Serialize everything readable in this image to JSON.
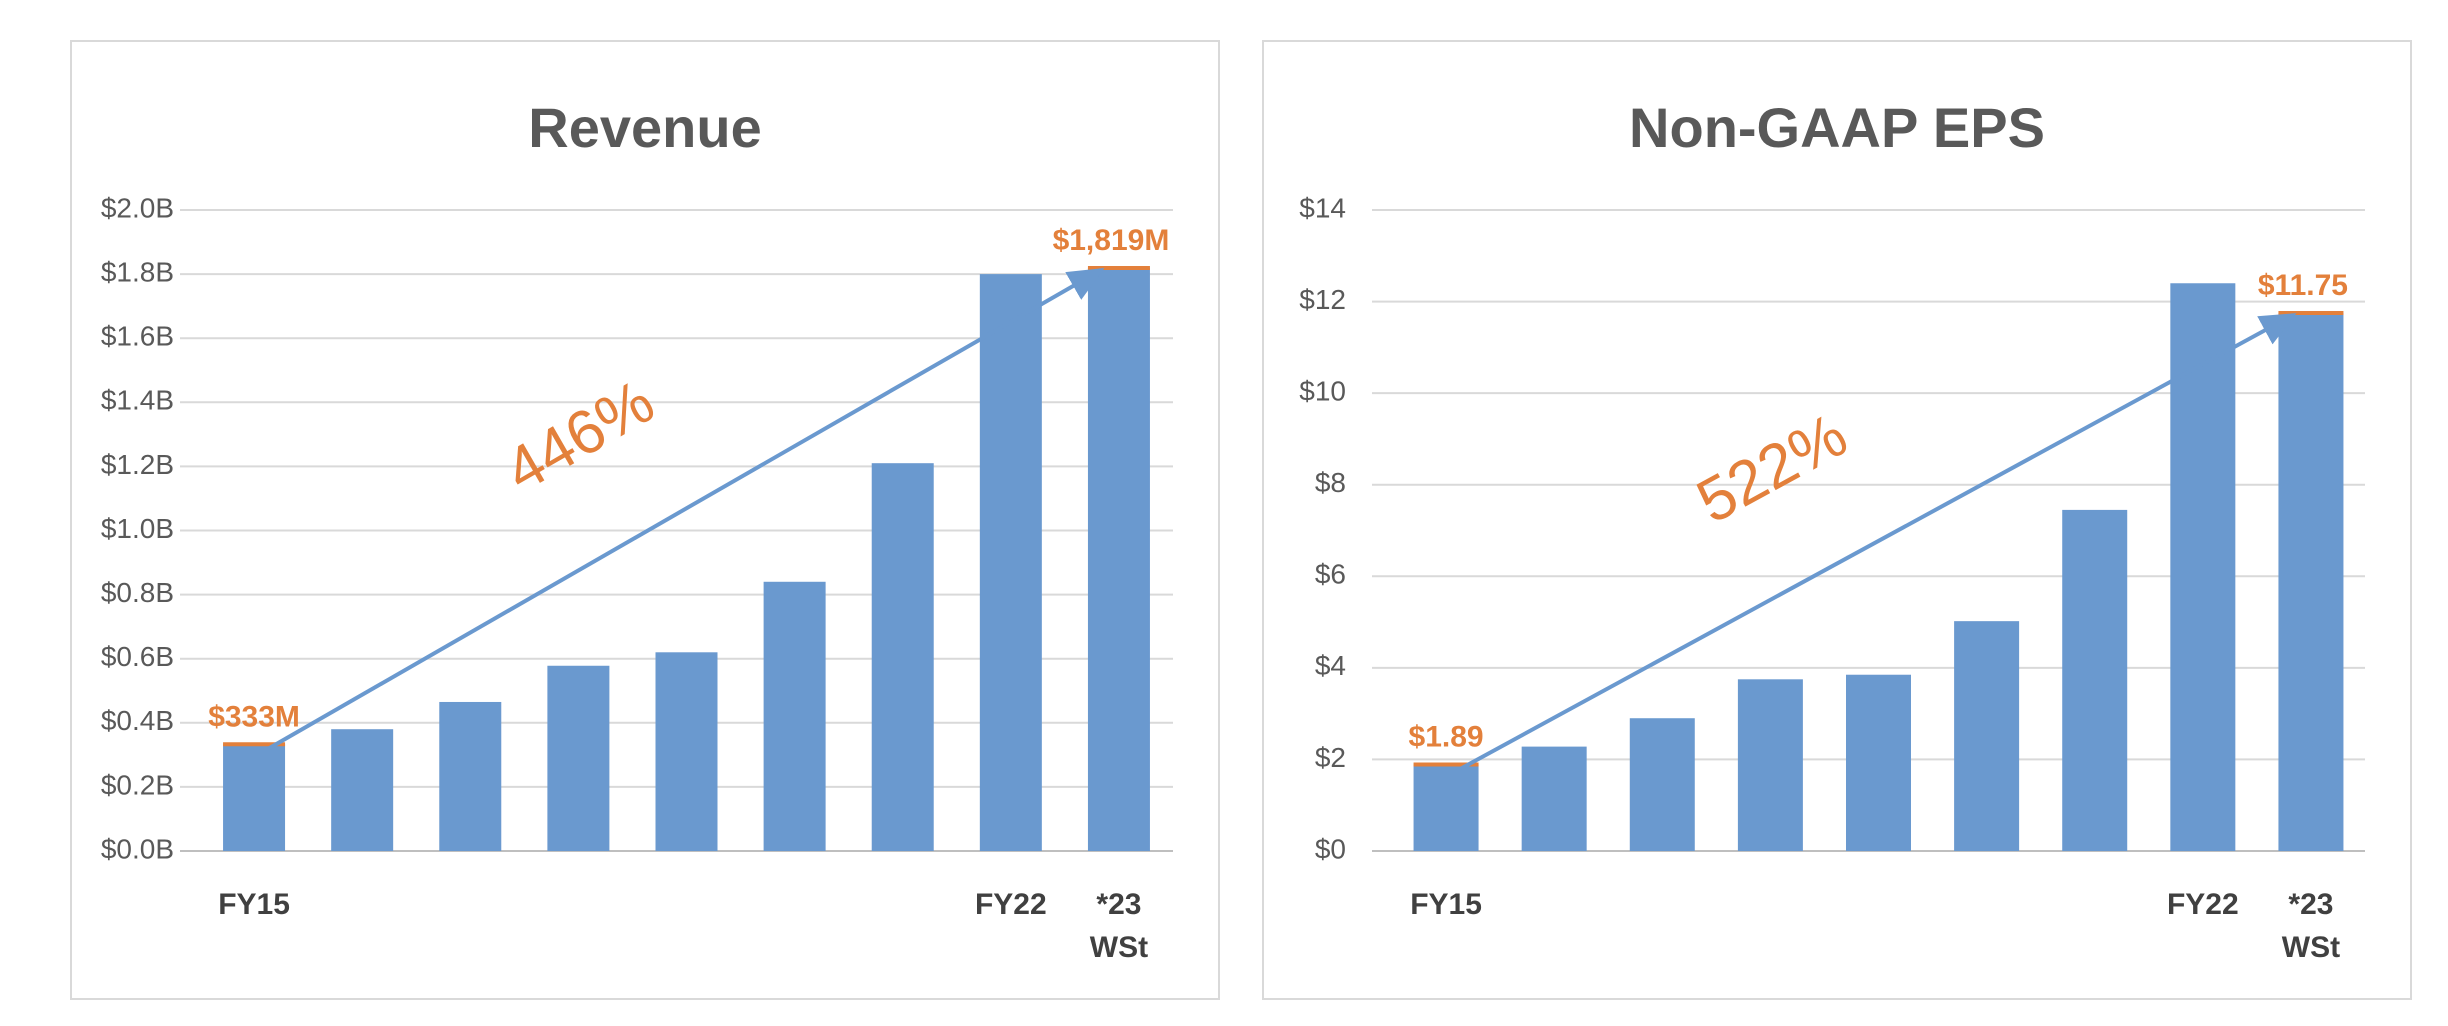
{
  "chart_data": [
    {
      "type": "bar",
      "title": "Revenue",
      "unit": "$B",
      "categories": [
        "FY15",
        "",
        "",
        "",
        "",
        "",
        "",
        "FY22",
        "*23"
      ],
      "category_sublabels": [
        "",
        "",
        "",
        "",
        "",
        "",
        "",
        "",
        "WSt"
      ],
      "values": [
        0.333,
        0.38,
        0.465,
        0.578,
        0.62,
        0.84,
        1.21,
        1.8,
        1.819
      ],
      "ylim": [
        0,
        2.0
      ],
      "yticks": [
        0,
        0.2,
        0.4,
        0.6,
        0.8,
        1.0,
        1.2,
        1.4,
        1.6,
        1.8,
        2.0
      ],
      "ytick_labels": [
        "$0.0B",
        "$0.2B",
        "$0.4B",
        "$0.6B",
        "$0.8B",
        "$1.0B",
        "$1.2B",
        "$1.4B",
        "$1.6B",
        "$1.8B",
        "$2.0B"
      ],
      "start_label": "$333M",
      "end_label": "$1,819M",
      "growth_label": "446%",
      "bar_color": "#6a99cf",
      "accent_color": "#e3803b",
      "grid": true
    },
    {
      "type": "bar",
      "title": "Non-GAAP EPS",
      "unit": "$",
      "categories": [
        "FY15",
        "",
        "",
        "",
        "",
        "",
        "",
        "FY22",
        "*23"
      ],
      "category_sublabels": [
        "",
        "",
        "",
        "",
        "",
        "",
        "",
        "",
        "WSt"
      ],
      "values": [
        1.89,
        2.28,
        2.9,
        3.75,
        3.85,
        5.02,
        7.45,
        12.4,
        11.75
      ],
      "ylim": [
        0,
        14
      ],
      "yticks": [
        0,
        2,
        4,
        6,
        8,
        10,
        12,
        14
      ],
      "ytick_labels": [
        "$0",
        "$2",
        "$4",
        "$6",
        "$8",
        "$10",
        "$12",
        "$14"
      ],
      "start_label": "$1.89",
      "end_label": "$11.75",
      "growth_label": "522%",
      "bar_color": "#6a99cf",
      "accent_color": "#e3803b",
      "grid": true
    }
  ]
}
